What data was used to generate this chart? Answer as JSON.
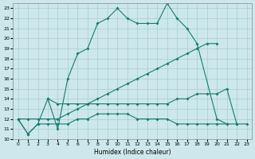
{
  "xlabel": "Humidex (Indice chaleur)",
  "bg_color": "#cce8ec",
  "grid_color": "#aacccc",
  "line_color": "#1a7a6e",
  "xlim": [
    -0.5,
    23.5
  ],
  "ylim": [
    10,
    23.5
  ],
  "xticks": [
    0,
    1,
    2,
    3,
    4,
    5,
    6,
    7,
    8,
    9,
    10,
    11,
    12,
    13,
    14,
    15,
    16,
    17,
    18,
    19,
    20,
    21,
    22,
    23
  ],
  "yticks": [
    10,
    11,
    12,
    13,
    14,
    15,
    16,
    17,
    18,
    19,
    20,
    21,
    22,
    23
  ],
  "series1_x": [
    0,
    1,
    2,
    3,
    4,
    5,
    6,
    7,
    8,
    9,
    10,
    11,
    12,
    13,
    14,
    15,
    16,
    17,
    18,
    20,
    21
  ],
  "series1_y": [
    12,
    10.5,
    11.5,
    14,
    11,
    16,
    18.5,
    19,
    21.5,
    22,
    23,
    22,
    21.5,
    21.5,
    21.5,
    23.5,
    22,
    21,
    19.5,
    12,
    11.5
  ],
  "series2_x": [
    0,
    1,
    2,
    3,
    4,
    5,
    6,
    7,
    8,
    9,
    10,
    11,
    12,
    13,
    14,
    15,
    16,
    17,
    18,
    19,
    20,
    21,
    22,
    23
  ],
  "series2_y": [
    12,
    10.5,
    11.5,
    11.5,
    11.5,
    11.5,
    12,
    12,
    12.5,
    12.5,
    12.5,
    12.5,
    12,
    12,
    12,
    12,
    11.5,
    11.5,
    11.5,
    11.5,
    11.5,
    11.5,
    11.5,
    11.5
  ],
  "series3_x": [
    0,
    1,
    2,
    3,
    4,
    5,
    6,
    7,
    8,
    9,
    10,
    11,
    12,
    13,
    14,
    15,
    16,
    17,
    18,
    19,
    20
  ],
  "series3_y": [
    12,
    12,
    12,
    12,
    12,
    12.5,
    13,
    13.5,
    14,
    14.5,
    15,
    15.5,
    16,
    16.5,
    17,
    17.5,
    18,
    18.5,
    19,
    19.5,
    19.5
  ],
  "series4_x": [
    3,
    4,
    5,
    6,
    7,
    8,
    9,
    10,
    11,
    12,
    13,
    14,
    15,
    16,
    17,
    18,
    19,
    20,
    21,
    22
  ],
  "series4_y": [
    14,
    13.5,
    13.5,
    13.5,
    13.5,
    13.5,
    13.5,
    13.5,
    13.5,
    13.5,
    13.5,
    13.5,
    13.5,
    14,
    14,
    14.5,
    14.5,
    14.5,
    15,
    11.5
  ]
}
